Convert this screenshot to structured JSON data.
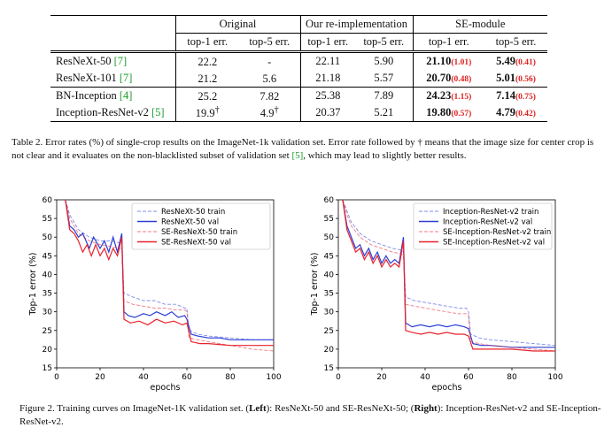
{
  "table": {
    "groups": [
      "Original",
      "Our re-implementation",
      "SE-module"
    ],
    "subheaders": [
      "top-1 err.",
      "top-5 err.",
      "top-1 err.",
      "top-5 err.",
      "top-1 err.",
      "top-5 err."
    ],
    "rows": [
      {
        "model": "ResNeXt-50",
        "ref": "[7]",
        "o1": "22.2",
        "o1_sup": "",
        "o5": "-",
        "o5_sup": "",
        "r1": "22.11",
        "r5": "5.90",
        "s1": "21.10",
        "s1d": "(1.01)",
        "s5": "5.49",
        "s5d": "(0.41)"
      },
      {
        "model": "ResNeXt-101",
        "ref": "[7]",
        "o1": "21.2",
        "o1_sup": "",
        "o5": "5.6",
        "o5_sup": "",
        "r1": "21.18",
        "r5": "5.57",
        "s1": "20.70",
        "s1d": "(0.48)",
        "s5": "5.01",
        "s5d": "(0.56)"
      },
      {
        "model": "BN-Inception",
        "ref": "[4]",
        "o1": "25.2",
        "o1_sup": "",
        "o5": "7.82",
        "o5_sup": "",
        "r1": "25.38",
        "r5": "7.89",
        "s1": "24.23",
        "s1d": "(1.15)",
        "s5": "7.14",
        "s5d": "(0.75)"
      },
      {
        "model": "Inception-ResNet-v2",
        "ref": "[5]",
        "o1": "19.9",
        "o1_sup": "†",
        "o5": "4.9",
        "o5_sup": "†",
        "r1": "20.37",
        "r5": "5.21",
        "s1": "19.80",
        "s1d": "(0.57)",
        "s5": "4.79",
        "s5d": "(0.42)"
      }
    ]
  },
  "table_caption": {
    "text": "Table 2. Error rates (%) of single-crop results on the ImageNet-1k validation set. Error rate followed by † means that the image size for center crop is not clear and it evaluates on the non-blacklisted subset of validation set ",
    "ref": "[5]",
    "tail": ", which may lead to slightly better results."
  },
  "figure_caption": {
    "p1": "Figure 2. Training curves on ImageNet-1K validation set. (",
    "left": "Left",
    "p2": "): ResNeXt-50 and SE-ResNeXt-50; (",
    "right": "Right",
    "p3": "): Inception-ResNet-v2 and SE-Inception-ResNet-v2."
  },
  "colors": {
    "blue": "#2a3fd6",
    "red": "#e8212b",
    "ref_green": "#1a9c2a",
    "delta_red": "#e02020"
  },
  "chart_data": [
    {
      "type": "line",
      "xlabel": "epochs",
      "ylabel": "Top-1 error (%)",
      "xlim": [
        0,
        100
      ],
      "ylim": [
        15,
        60
      ],
      "xticks": [
        0,
        20,
        40,
        60,
        80,
        100
      ],
      "yticks": [
        15,
        20,
        25,
        30,
        35,
        40,
        45,
        50,
        55,
        60
      ],
      "legend_position": "top-right",
      "series": [
        {
          "name": "ResNeXt-50 train",
          "color": "#2a3fd6",
          "dash": true,
          "x": [
            4,
            6,
            10,
            15,
            20,
            25,
            29,
            30,
            31,
            35,
            40,
            45,
            50,
            55,
            59,
            60,
            61,
            65,
            70,
            80,
            90,
            100
          ],
          "y": [
            60,
            56,
            52,
            50,
            49,
            49,
            48.5,
            48.5,
            35,
            34,
            33,
            33,
            32,
            32,
            31,
            31,
            25,
            24,
            23.5,
            23,
            22.5,
            22.5
          ]
        },
        {
          "name": "ResNeXt-50 val",
          "color": "#2a3fd6",
          "dash": false,
          "x": [
            4,
            6,
            8,
            10,
            12,
            15,
            17,
            20,
            22,
            24,
            26,
            28,
            30,
            31,
            33,
            36,
            40,
            43,
            46,
            50,
            53,
            56,
            59,
            60,
            62,
            65,
            70,
            75,
            80,
            90,
            100
          ],
          "y": [
            60,
            53,
            52,
            50,
            51,
            47,
            50,
            47,
            49,
            46,
            50,
            46,
            51,
            30,
            29,
            28.5,
            29.5,
            29,
            30,
            29,
            30,
            28.5,
            29,
            28,
            24,
            23.5,
            23,
            23,
            22.5,
            22.5,
            22.5
          ]
        },
        {
          "name": "SE-ResNeXt-50 train",
          "color": "#e8212b",
          "dash": true,
          "x": [
            4,
            6,
            10,
            15,
            20,
            25,
            29,
            30,
            31,
            35,
            40,
            45,
            50,
            55,
            59,
            60,
            61,
            65,
            70,
            80,
            90,
            100
          ],
          "y": [
            60,
            55,
            51,
            49,
            48,
            47.5,
            47,
            47,
            33,
            32,
            31.5,
            31,
            31,
            30.5,
            30.5,
            30,
            23,
            22.5,
            22,
            21,
            20,
            19.5
          ]
        },
        {
          "name": "SE-ResNeXt-50 val",
          "color": "#e8212b",
          "dash": false,
          "x": [
            4,
            6,
            8,
            10,
            12,
            14,
            16,
            18,
            20,
            22,
            24,
            26,
            28,
            30,
            31,
            34,
            38,
            42,
            46,
            50,
            54,
            58,
            60,
            62,
            66,
            70,
            80,
            90,
            100
          ],
          "y": [
            60,
            52,
            51,
            49,
            46,
            48,
            45,
            48,
            45,
            47,
            44,
            47,
            45,
            50,
            28,
            27,
            27.5,
            26.5,
            28,
            27,
            27.5,
            26.5,
            27,
            22,
            21.5,
            21.5,
            21,
            21,
            21
          ]
        }
      ]
    },
    {
      "type": "line",
      "xlabel": "epochs",
      "ylabel": "Top-1 error (%)",
      "xlim": [
        0,
        100
      ],
      "ylim": [
        15,
        60
      ],
      "xticks": [
        0,
        20,
        40,
        60,
        80,
        100
      ],
      "yticks": [
        15,
        20,
        25,
        30,
        35,
        40,
        45,
        50,
        55,
        60
      ],
      "legend_position": "top-right",
      "series": [
        {
          "name": "Inception-ResNet-v2 train",
          "color": "#2a3fd6",
          "dash": true,
          "x": [
            2,
            4,
            6,
            10,
            15,
            20,
            25,
            29,
            30,
            31,
            35,
            40,
            45,
            50,
            55,
            59,
            60,
            61,
            65,
            70,
            80,
            90,
            100
          ],
          "y": [
            60,
            57,
            54,
            51,
            49,
            48,
            47,
            46.5,
            46,
            34,
            33,
            32.5,
            32,
            31.5,
            31,
            31,
            30,
            24,
            23,
            22.5,
            22,
            21.5,
            21
          ]
        },
        {
          "name": "Inception-ResNet-v2 val",
          "color": "#2a3fd6",
          "dash": false,
          "x": [
            2,
            4,
            6,
            8,
            10,
            12,
            14,
            16,
            18,
            20,
            22,
            24,
            26,
            28,
            30,
            31,
            34,
            38,
            42,
            46,
            50,
            54,
            58,
            60,
            62,
            66,
            70,
            80,
            90,
            100
          ],
          "y": [
            60,
            53,
            50,
            47,
            48,
            45,
            47,
            44,
            46,
            43,
            45,
            43,
            44,
            43,
            50,
            27,
            26,
            26.5,
            26,
            26.5,
            26,
            26.5,
            26,
            25.5,
            21.5,
            21,
            21,
            20.5,
            20.5,
            20.5
          ]
        },
        {
          "name": "SE-Inception-ResNet-v2 train",
          "color": "#e8212b",
          "dash": true,
          "x": [
            2,
            4,
            6,
            10,
            15,
            20,
            25,
            29,
            30,
            31,
            35,
            40,
            45,
            50,
            55,
            59,
            60,
            61,
            65,
            70,
            80,
            90,
            100
          ],
          "y": [
            60,
            56,
            53,
            50,
            48,
            47,
            46,
            45.5,
            45,
            32,
            31.5,
            31,
            30.5,
            30,
            29.5,
            29.5,
            29,
            22,
            21.5,
            21,
            20.5,
            20,
            19.5
          ]
        },
        {
          "name": "SE-Inception-ResNet-v2 val",
          "color": "#e8212b",
          "dash": false,
          "x": [
            2,
            4,
            6,
            8,
            10,
            12,
            14,
            16,
            18,
            20,
            22,
            24,
            26,
            28,
            30,
            31,
            34,
            38,
            42,
            46,
            50,
            54,
            58,
            60,
            62,
            66,
            70,
            80,
            90,
            100
          ],
          "y": [
            60,
            52,
            49,
            46,
            47,
            44,
            46,
            43,
            45,
            42,
            44,
            42,
            43,
            42,
            49,
            25,
            24.5,
            24,
            24.5,
            24,
            24.5,
            24,
            24,
            23.5,
            20,
            20,
            20,
            20,
            19.5,
            19.5
          ]
        }
      ]
    }
  ]
}
